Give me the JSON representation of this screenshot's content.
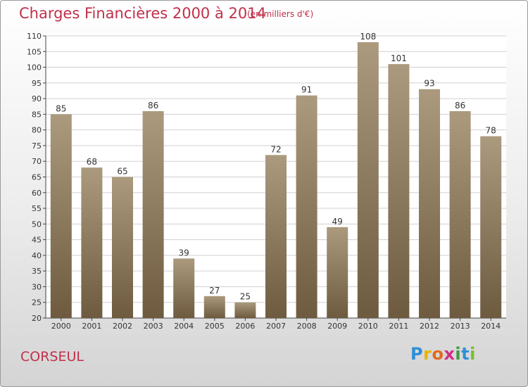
{
  "header": {
    "title": "Charges Financières 2000 à 2014",
    "subtitle": "(en milliers d'€)"
  },
  "footer": {
    "commune": "CORSEUL",
    "logo_letters": [
      {
        "ch": "P",
        "color": "#2f8fd8"
      },
      {
        "ch": "r",
        "color": "#e8b400"
      },
      {
        "ch": "o",
        "color": "#e06c1e"
      },
      {
        "ch": "x",
        "color": "#d02f85"
      },
      {
        "ch": "i",
        "color": "#3d9a42"
      },
      {
        "ch": "t",
        "color": "#2f8fd8"
      },
      {
        "ch": "i",
        "color": "#7bbf2a"
      }
    ]
  },
  "colors": {
    "title": "#c0304a",
    "bar_light": "#ab9a7e",
    "bar_dark": "#6e5b3f",
    "grid": "#d0d0d0",
    "axis": "#444444"
  },
  "chart_data": {
    "type": "bar",
    "title": "Charges Financières 2000 à 2014",
    "subtitle": "(en milliers d'€)",
    "categories": [
      "2000",
      "2001",
      "2002",
      "2003",
      "2004",
      "2005",
      "2006",
      "2007",
      "2008",
      "2009",
      "2010",
      "2011",
      "2012",
      "2013",
      "2014"
    ],
    "values": [
      85,
      68,
      65,
      86,
      39,
      27,
      25,
      72,
      91,
      49,
      108,
      101,
      93,
      86,
      78
    ],
    "ylim": [
      20,
      110
    ],
    "ytick_step": 5,
    "grid": true,
    "legend": "none"
  }
}
